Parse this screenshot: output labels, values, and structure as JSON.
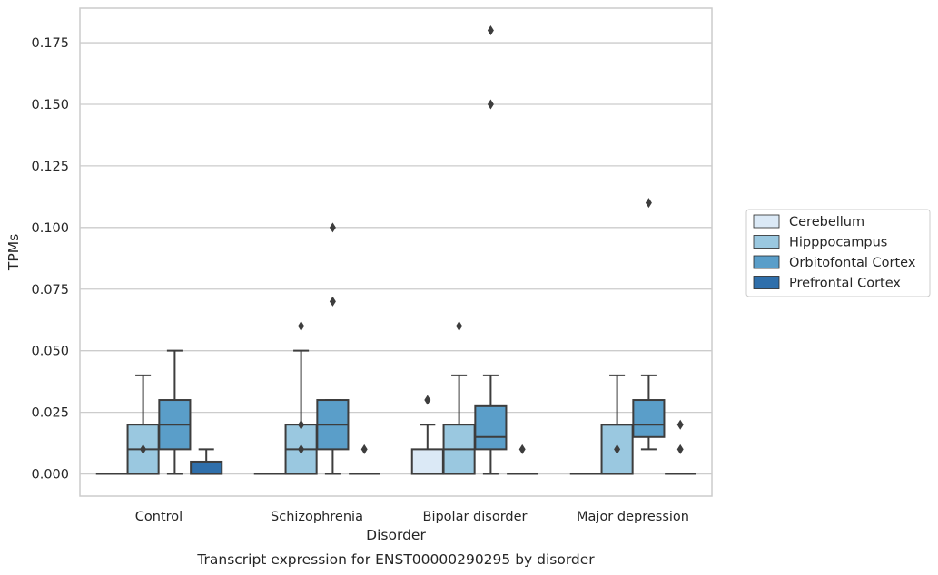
{
  "caption": "Transcript expression for ENST00000290295 by disorder",
  "chart_data": {
    "type": "box",
    "xlabel": "Disorder",
    "ylabel": "TPMs",
    "ylim": [
      -0.009,
      0.189
    ],
    "yticks": [
      0.0,
      0.025,
      0.05,
      0.075,
      0.1,
      0.125,
      0.15,
      0.175
    ],
    "ytick_labels": [
      "0.000",
      "0.025",
      "0.050",
      "0.075",
      "0.100",
      "0.125",
      "0.150",
      "0.175"
    ],
    "grid": "horizontal",
    "legend_position": "right",
    "categories": [
      "Control",
      "Schizophrenia",
      "Bipolar disorder",
      "Major depression"
    ],
    "series": [
      {
        "name": "Cerebellum",
        "color": "#dbe9f6",
        "boxes": [
          {
            "whislo": 0.0,
            "q1": 0.0,
            "med": 0.0,
            "q3": 0.0,
            "whishi": 0.0,
            "fliers": []
          },
          {
            "whislo": 0.0,
            "q1": 0.0,
            "med": 0.0,
            "q3": 0.0,
            "whishi": 0.0,
            "fliers": []
          },
          {
            "whislo": 0.0,
            "q1": 0.0,
            "med": 0.0,
            "q3": 0.01,
            "whishi": 0.02,
            "fliers": [
              0.03
            ]
          },
          {
            "whislo": 0.0,
            "q1": 0.0,
            "med": 0.0,
            "q3": 0.0,
            "whishi": 0.0,
            "fliers": []
          }
        ]
      },
      {
        "name": "Hipppocampus",
        "color": "#9ac8e0",
        "boxes": [
          {
            "whislo": 0.0,
            "q1": 0.0,
            "med": 0.01,
            "q3": 0.02,
            "whishi": 0.04,
            "fliers": [
              0.01
            ]
          },
          {
            "whislo": 0.0,
            "q1": 0.0,
            "med": 0.01,
            "q3": 0.02,
            "whishi": 0.05,
            "fliers": [
              0.01,
              0.02,
              0.06
            ]
          },
          {
            "whislo": 0.0,
            "q1": 0.0,
            "med": 0.01,
            "q3": 0.02,
            "whishi": 0.04,
            "fliers": [
              0.06
            ]
          },
          {
            "whislo": 0.0,
            "q1": 0.0,
            "med": 0.02,
            "q3": 0.02,
            "whishi": 0.04,
            "fliers": [
              0.01
            ]
          }
        ]
      },
      {
        "name": "Orbitofontal Cortex",
        "color": "#5a9ec9",
        "boxes": [
          {
            "whislo": 0.0,
            "q1": 0.01,
            "med": 0.02,
            "q3": 0.03,
            "whishi": 0.05,
            "fliers": []
          },
          {
            "whislo": 0.0,
            "q1": 0.01,
            "med": 0.02,
            "q3": 0.03,
            "whishi": 0.03,
            "fliers": [
              0.07,
              0.1
            ]
          },
          {
            "whislo": 0.0,
            "q1": 0.01,
            "med": 0.015,
            "q3": 0.0275,
            "whishi": 0.04,
            "fliers": [
              0.15,
              0.18
            ]
          },
          {
            "whislo": 0.01,
            "q1": 0.015,
            "med": 0.02,
            "q3": 0.03,
            "whishi": 0.04,
            "fliers": [
              0.11
            ]
          }
        ]
      },
      {
        "name": "Prefrontal Cortex",
        "color": "#2f6fab",
        "boxes": [
          {
            "whislo": 0.0,
            "q1": 0.0,
            "med": 0.0,
            "q3": 0.005,
            "whishi": 0.01,
            "fliers": []
          },
          {
            "whislo": 0.0,
            "q1": 0.0,
            "med": 0.0,
            "q3": 0.0,
            "whishi": 0.0,
            "fliers": [
              0.01
            ]
          },
          {
            "whislo": 0.0,
            "q1": 0.0,
            "med": 0.0,
            "q3": 0.0,
            "whishi": 0.0,
            "fliers": [
              0.01
            ]
          },
          {
            "whislo": 0.0,
            "q1": 0.0,
            "med": 0.0,
            "q3": 0.0,
            "whishi": 0.0,
            "fliers": [
              0.01,
              0.02
            ]
          }
        ]
      }
    ]
  }
}
